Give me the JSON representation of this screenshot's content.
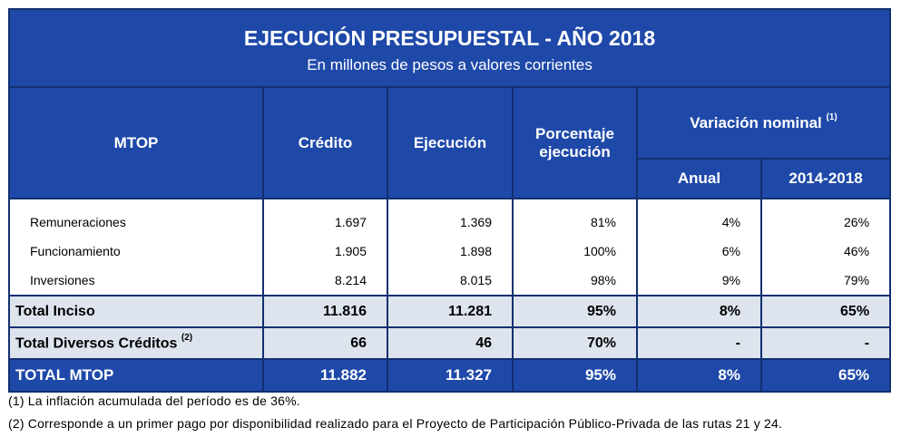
{
  "title": "EJECUCIÓN PRESUPUESTAL - AÑO 2018",
  "subtitle": "En millones de pesos a valores corrientes",
  "headers": {
    "mtop": "MTOP",
    "credito": "Crédito",
    "ejecucion": "Ejecución",
    "porcentaje_line1": "Porcentaje",
    "porcentaje_line2": "ejecución",
    "variacion": "Variación nominal",
    "variacion_note": "(1)",
    "anual": "Anual",
    "periodo": "2014-2018"
  },
  "rows": [
    {
      "label": "Remuneraciones",
      "credito": "1.697",
      "ejecucion": "1.369",
      "porcentaje": "81%",
      "anual": "4%",
      "periodo": "26%"
    },
    {
      "label": "Funcionamiento",
      "credito": "1.905",
      "ejecucion": "1.898",
      "porcentaje": "100%",
      "anual": "6%",
      "periodo": "46%"
    },
    {
      "label": "Inversiones",
      "credito": "8.214",
      "ejecucion": "8.015",
      "porcentaje": "98%",
      "anual": "9%",
      "periodo": "79%"
    }
  ],
  "total_inciso": {
    "label": "Total Inciso",
    "credito": "11.816",
    "ejecucion": "11.281",
    "porcentaje": "95%",
    "anual": "8%",
    "periodo": "65%"
  },
  "total_diversos": {
    "label": "Total Diversos Créditos",
    "note": "(2)",
    "credito": "66",
    "ejecucion": "46",
    "porcentaje": "70%",
    "anual": "-",
    "periodo": "-"
  },
  "total_mtop": {
    "label": "TOTAL MTOP",
    "credito": "11.882",
    "ejecucion": "11.327",
    "porcentaje": "95%",
    "anual": "8%",
    "periodo": "65%"
  },
  "notes": [
    "(1) La inflación acumulada del período es de 36%.",
    "(2) Corresponde a un primer pago por disponibilidad realizado para el Proyecto de Participación Público-Privada de las rutas 21 y 24."
  ]
}
